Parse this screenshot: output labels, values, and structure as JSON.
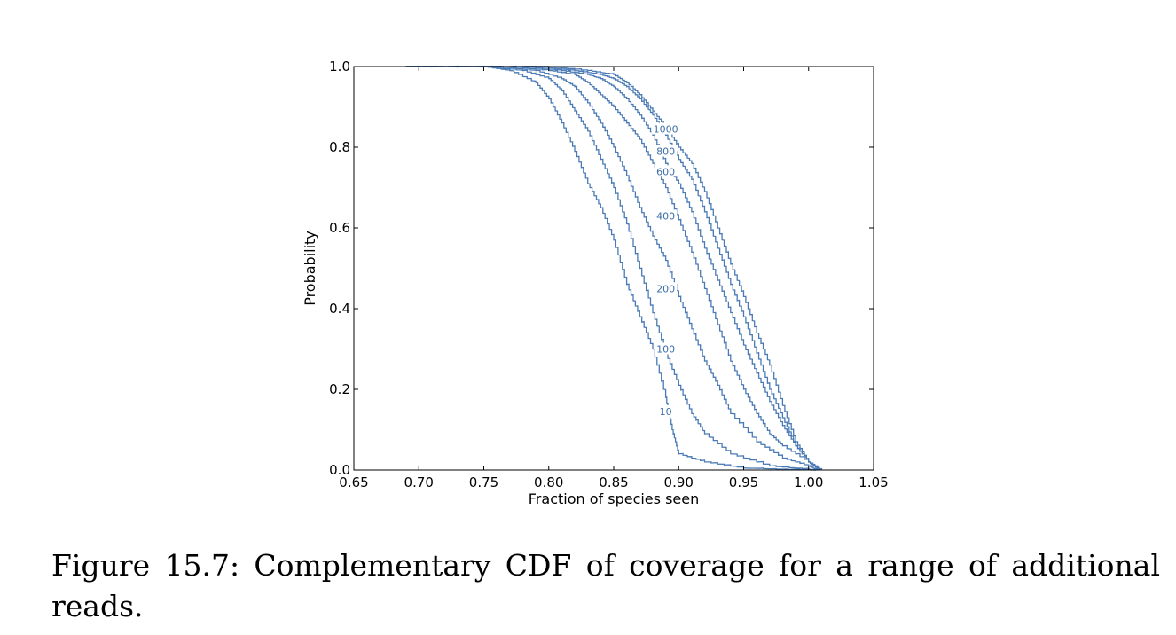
{
  "caption": "Figure 15.7: Complementary CDF of coverage for a range of additional reads.",
  "chart_data": {
    "type": "line",
    "title": "",
    "xlabel": "Fraction of species seen",
    "ylabel": "Probability",
    "xlim": [
      0.65,
      1.05
    ],
    "ylim": [
      0.0,
      1.0
    ],
    "xticks": [
      "0.65",
      "0.70",
      "0.75",
      "0.80",
      "0.85",
      "0.90",
      "0.95",
      "1.00",
      "1.05"
    ],
    "yticks": [
      "0.0",
      "0.2",
      "0.4",
      "0.6",
      "0.8",
      "1.0"
    ],
    "grid": false,
    "line_color": "#4a7ab5",
    "series": [
      {
        "name": "10",
        "label_at": [
          0.89,
          0.145
        ],
        "x": [
          0.69,
          0.75,
          0.77,
          0.79,
          0.8,
          0.81,
          0.82,
          0.83,
          0.84,
          0.85,
          0.86,
          0.87,
          0.88,
          0.89,
          0.895,
          0.9,
          0.92,
          0.95,
          0.98,
          1.0,
          1.005
        ],
        "y": [
          1.0,
          1.0,
          0.99,
          0.96,
          0.92,
          0.86,
          0.79,
          0.71,
          0.65,
          0.57,
          0.46,
          0.38,
          0.3,
          0.18,
          0.1,
          0.04,
          0.02,
          0.005,
          0.002,
          0.001,
          0.0
        ]
      },
      {
        "name": "100",
        "label_at": [
          0.89,
          0.3
        ],
        "x": [
          0.69,
          0.75,
          0.78,
          0.8,
          0.81,
          0.82,
          0.83,
          0.84,
          0.85,
          0.86,
          0.87,
          0.88,
          0.89,
          0.9,
          0.91,
          0.92,
          0.94,
          0.97,
          1.0,
          1.005
        ],
        "y": [
          1.0,
          1.0,
          0.99,
          0.97,
          0.94,
          0.89,
          0.84,
          0.77,
          0.7,
          0.61,
          0.5,
          0.39,
          0.29,
          0.21,
          0.14,
          0.09,
          0.04,
          0.01,
          0.002,
          0.0
        ]
      },
      {
        "name": "200",
        "label_at": [
          0.89,
          0.45
        ],
        "x": [
          0.69,
          0.76,
          0.79,
          0.81,
          0.82,
          0.83,
          0.84,
          0.85,
          0.86,
          0.87,
          0.88,
          0.89,
          0.9,
          0.91,
          0.92,
          0.93,
          0.94,
          0.96,
          0.98,
          1.0,
          1.007
        ],
        "y": [
          1.0,
          1.0,
          0.99,
          0.97,
          0.95,
          0.91,
          0.86,
          0.8,
          0.73,
          0.65,
          0.58,
          0.52,
          0.43,
          0.35,
          0.27,
          0.21,
          0.14,
          0.07,
          0.03,
          0.01,
          0.0
        ]
      },
      {
        "name": "400",
        "label_at": [
          0.89,
          0.63
        ],
        "x": [
          0.69,
          0.77,
          0.8,
          0.82,
          0.83,
          0.84,
          0.85,
          0.86,
          0.87,
          0.88,
          0.89,
          0.9,
          0.91,
          0.92,
          0.93,
          0.94,
          0.95,
          0.96,
          0.97,
          0.98,
          1.0,
          1.008
        ],
        "y": [
          1.0,
          1.0,
          0.99,
          0.98,
          0.96,
          0.93,
          0.9,
          0.86,
          0.82,
          0.76,
          0.7,
          0.62,
          0.54,
          0.45,
          0.36,
          0.27,
          0.2,
          0.14,
          0.09,
          0.06,
          0.02,
          0.0
        ]
      },
      {
        "name": "600",
        "label_at": [
          0.89,
          0.74
        ],
        "x": [
          0.69,
          0.78,
          0.81,
          0.83,
          0.84,
          0.85,
          0.86,
          0.87,
          0.88,
          0.89,
          0.9,
          0.91,
          0.92,
          0.93,
          0.94,
          0.95,
          0.96,
          0.97,
          0.98,
          0.99,
          1.0,
          1.009
        ],
        "y": [
          1.0,
          1.0,
          0.99,
          0.98,
          0.97,
          0.95,
          0.92,
          0.88,
          0.83,
          0.76,
          0.71,
          0.64,
          0.55,
          0.47,
          0.39,
          0.31,
          0.24,
          0.17,
          0.11,
          0.06,
          0.02,
          0.0
        ]
      },
      {
        "name": "800",
        "label_at": [
          0.89,
          0.79
        ],
        "x": [
          0.69,
          0.79,
          0.82,
          0.84,
          0.85,
          0.86,
          0.87,
          0.88,
          0.89,
          0.9,
          0.91,
          0.92,
          0.93,
          0.94,
          0.95,
          0.96,
          0.97,
          0.98,
          0.99,
          1.0,
          1.009
        ],
        "y": [
          1.0,
          1.0,
          0.99,
          0.98,
          0.97,
          0.95,
          0.92,
          0.88,
          0.83,
          0.77,
          0.72,
          0.64,
          0.55,
          0.46,
          0.38,
          0.29,
          0.2,
          0.13,
          0.06,
          0.02,
          0.0
        ]
      },
      {
        "name": "1000",
        "label_at": [
          0.89,
          0.845
        ],
        "x": [
          0.69,
          0.8,
          0.83,
          0.85,
          0.86,
          0.87,
          0.88,
          0.89,
          0.9,
          0.91,
          0.92,
          0.93,
          0.94,
          0.95,
          0.96,
          0.97,
          0.98,
          0.99,
          1.0,
          1.01
        ],
        "y": [
          1.0,
          1.0,
          0.99,
          0.98,
          0.96,
          0.93,
          0.89,
          0.85,
          0.8,
          0.76,
          0.69,
          0.6,
          0.51,
          0.43,
          0.34,
          0.26,
          0.16,
          0.07,
          0.02,
          0.0
        ]
      }
    ]
  }
}
